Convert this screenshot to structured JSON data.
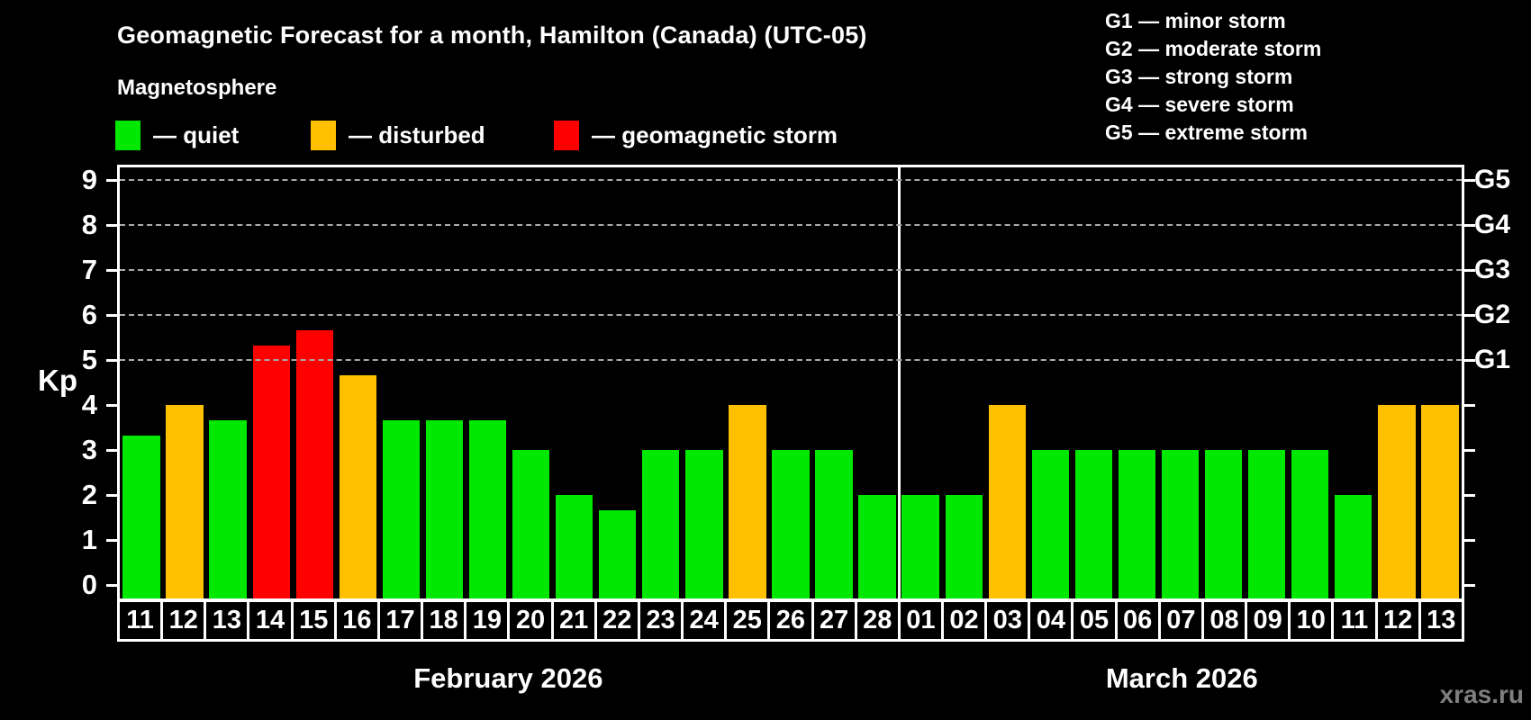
{
  "title": "Geomagnetic Forecast for a month, Hamilton (Canada) (UTC-05)",
  "subtitle": "Magnetosphere",
  "watermark": "xras.ru",
  "legend": [
    {
      "label": "— quiet",
      "status": "quiet"
    },
    {
      "label": "— disturbed",
      "status": "disturbed"
    },
    {
      "label": "— geomagnetic storm",
      "status": "storm"
    }
  ],
  "g_scale_legend": [
    "G1 — minor storm",
    "G2 — moderate storm",
    "G3 — strong storm",
    "G4 — severe storm",
    "G5 — extreme storm"
  ],
  "chart_data": {
    "type": "bar",
    "ylabel": "Kp",
    "ylim": [
      0,
      9.3
    ],
    "y_ticks": [
      0,
      1,
      2,
      3,
      4,
      5,
      6,
      7,
      8,
      9
    ],
    "dashed_gridlines_at": [
      5,
      6,
      7,
      8,
      9
    ],
    "grid": "dashed horizontal at storm levels only",
    "legend_position": "top-left statuses, top-right G scale",
    "status_colors": {
      "quiet": "#00E800",
      "disturbed": "#FFC000",
      "storm": "#FF0000"
    },
    "axis_color": "#FFFFFF",
    "gridline_color": "#AAAAAA",
    "background_color": "#000000",
    "right_axis_labels": [
      {
        "label": "G1",
        "kp": 5
      },
      {
        "label": "G2",
        "kp": 6
      },
      {
        "label": "G3",
        "kp": 7
      },
      {
        "label": "G4",
        "kp": 8
      },
      {
        "label": "G5",
        "kp": 9
      }
    ],
    "months": [
      {
        "label": "February 2026",
        "days": 18
      },
      {
        "label": "March 2026",
        "days": 13
      }
    ],
    "bars": [
      {
        "day": "11",
        "kp": 3.33,
        "status": "quiet"
      },
      {
        "day": "12",
        "kp": 4.0,
        "status": "disturbed"
      },
      {
        "day": "13",
        "kp": 3.67,
        "status": "quiet"
      },
      {
        "day": "14",
        "kp": 5.33,
        "status": "storm"
      },
      {
        "day": "15",
        "kp": 5.67,
        "status": "storm"
      },
      {
        "day": "16",
        "kp": 4.67,
        "status": "disturbed"
      },
      {
        "day": "17",
        "kp": 3.67,
        "status": "quiet"
      },
      {
        "day": "18",
        "kp": 3.67,
        "status": "quiet"
      },
      {
        "day": "19",
        "kp": 3.67,
        "status": "quiet"
      },
      {
        "day": "20",
        "kp": 3.0,
        "status": "quiet"
      },
      {
        "day": "21",
        "kp": 2.0,
        "status": "quiet"
      },
      {
        "day": "22",
        "kp": 1.67,
        "status": "quiet"
      },
      {
        "day": "23",
        "kp": 3.0,
        "status": "quiet"
      },
      {
        "day": "24",
        "kp": 3.0,
        "status": "quiet"
      },
      {
        "day": "25",
        "kp": 4.0,
        "status": "disturbed"
      },
      {
        "day": "26",
        "kp": 3.0,
        "status": "quiet"
      },
      {
        "day": "27",
        "kp": 3.0,
        "status": "quiet"
      },
      {
        "day": "28",
        "kp": 2.0,
        "status": "quiet"
      },
      {
        "day": "01",
        "kp": 2.0,
        "status": "quiet"
      },
      {
        "day": "02",
        "kp": 2.0,
        "status": "quiet"
      },
      {
        "day": "03",
        "kp": 4.0,
        "status": "disturbed"
      },
      {
        "day": "04",
        "kp": 3.0,
        "status": "quiet"
      },
      {
        "day": "05",
        "kp": 3.0,
        "status": "quiet"
      },
      {
        "day": "06",
        "kp": 3.0,
        "status": "quiet"
      },
      {
        "day": "07",
        "kp": 3.0,
        "status": "quiet"
      },
      {
        "day": "08",
        "kp": 3.0,
        "status": "quiet"
      },
      {
        "day": "09",
        "kp": 3.0,
        "status": "quiet"
      },
      {
        "day": "10",
        "kp": 3.0,
        "status": "quiet"
      },
      {
        "day": "11",
        "kp": 2.0,
        "status": "quiet"
      },
      {
        "day": "12",
        "kp": 4.0,
        "status": "disturbed"
      },
      {
        "day": "13",
        "kp": 4.0,
        "status": "disturbed"
      }
    ]
  }
}
